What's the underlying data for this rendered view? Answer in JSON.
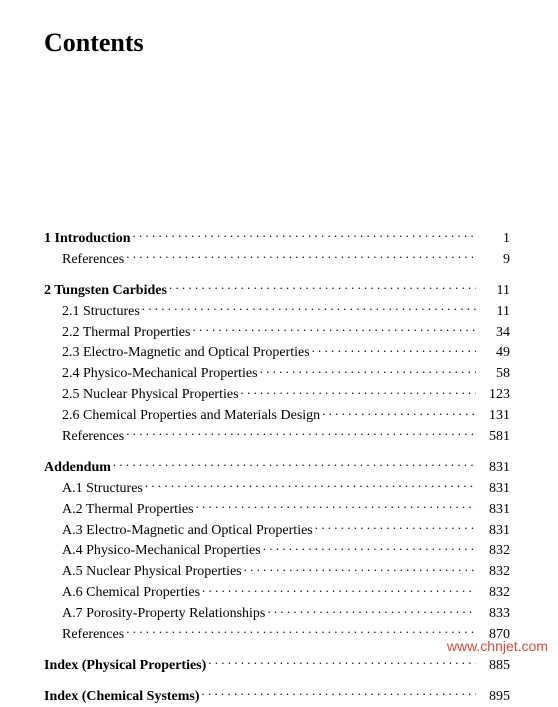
{
  "title": "Contents",
  "watermark": "www.chnjet.com",
  "typography": {
    "title_fontsize_pt": 20,
    "body_fontsize_pt": 11,
    "font_family": "Times New Roman",
    "text_color": "#000000",
    "background_color": "#ffffff",
    "watermark_color": "#d94a3a"
  },
  "toc": [
    {
      "type": "row",
      "indent": 0,
      "bold": true,
      "label": "1 Introduction",
      "page": "1",
      "gap": false
    },
    {
      "type": "row",
      "indent": 1,
      "bold": false,
      "label": "References",
      "page": "9",
      "gap": false
    },
    {
      "type": "row",
      "indent": 0,
      "bold": true,
      "label": "2 Tungsten Carbides",
      "page": "11",
      "gap": true
    },
    {
      "type": "row",
      "indent": 1,
      "bold": false,
      "label": "2.1 Structures",
      "page": "11",
      "gap": false
    },
    {
      "type": "row",
      "indent": 1,
      "bold": false,
      "label": "2.2 Thermal Properties",
      "page": "34",
      "gap": false
    },
    {
      "type": "row",
      "indent": 1,
      "bold": false,
      "label": "2.3 Electro-Magnetic and Optical Properties",
      "page": "49",
      "gap": false
    },
    {
      "type": "row",
      "indent": 1,
      "bold": false,
      "label": "2.4 Physico-Mechanical Properties",
      "page": "58",
      "gap": false
    },
    {
      "type": "row",
      "indent": 1,
      "bold": false,
      "label": "2.5 Nuclear Physical Properties",
      "page": "123",
      "gap": false
    },
    {
      "type": "row",
      "indent": 1,
      "bold": false,
      "label": "2.6 Chemical Properties and Materials Design",
      "page": "131",
      "gap": false
    },
    {
      "type": "row",
      "indent": 1,
      "bold": false,
      "label": "References",
      "page": "581",
      "gap": false
    },
    {
      "type": "row",
      "indent": 0,
      "bold": true,
      "label": "Addendum",
      "page": "831",
      "gap": true
    },
    {
      "type": "row",
      "indent": 1,
      "bold": false,
      "label": "A.1 Structures",
      "page": "831",
      "gap": false
    },
    {
      "type": "row",
      "indent": 1,
      "bold": false,
      "label": "A.2 Thermal Properties",
      "page": "831",
      "gap": false
    },
    {
      "type": "row",
      "indent": 1,
      "bold": false,
      "label": "A.3 Electro-Magnetic and Optical Properties",
      "page": "831",
      "gap": false
    },
    {
      "type": "row",
      "indent": 1,
      "bold": false,
      "label": "A.4 Physico-Mechanical Properties",
      "page": "832",
      "gap": false
    },
    {
      "type": "row",
      "indent": 1,
      "bold": false,
      "label": "A.5 Nuclear Physical Properties",
      "page": "832",
      "gap": false
    },
    {
      "type": "row",
      "indent": 1,
      "bold": false,
      "label": "A.6 Chemical Properties",
      "page": "832",
      "gap": false
    },
    {
      "type": "row",
      "indent": 1,
      "bold": false,
      "label": "A.7 Porosity-Property Relationships",
      "page": "833",
      "gap": false
    },
    {
      "type": "row",
      "indent": 1,
      "bold": false,
      "label": "References",
      "page": "870",
      "gap": false
    },
    {
      "type": "row",
      "indent": 0,
      "bold": true,
      "label": "Index (Physical Properties)",
      "page": "885",
      "gap": true
    },
    {
      "type": "row",
      "indent": 0,
      "bold": true,
      "label": "Index (Chemical Systems)",
      "page": "895",
      "gap": true
    }
  ]
}
